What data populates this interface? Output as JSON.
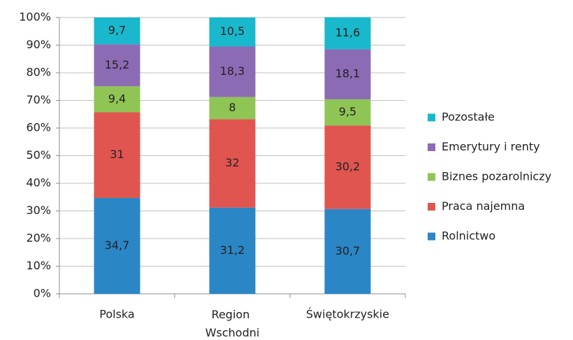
{
  "chart_data": {
    "type": "stacked_bar",
    "categories": [
      "Polska",
      "Region Wschodni",
      "Świętokrzyskie"
    ],
    "series": [
      {
        "name": "Rolnictwo",
        "color": "#2b86c6",
        "values": [
          34.7,
          31.2,
          30.7
        ],
        "value_labels": [
          "34,7",
          "31,2",
          "30,7"
        ]
      },
      {
        "name": "Praca najemna",
        "color": "#e05550",
        "values": [
          31,
          32,
          30.2
        ],
        "value_labels": [
          "31",
          "32",
          "30,2"
        ]
      },
      {
        "name": "Biznes pozarolniczy",
        "color": "#8fc555",
        "values": [
          9.4,
          8,
          9.5
        ],
        "value_labels": [
          "9,4",
          "8",
          "9,5"
        ]
      },
      {
        "name": "Emerytury i renty",
        "color": "#8c6bb5",
        "values": [
          15.2,
          18.3,
          18.1
        ],
        "value_labels": [
          "15,2",
          "18,3",
          "18,1"
        ]
      },
      {
        "name": "Pozostałe",
        "color": "#19b8cc",
        "values": [
          9.7,
          10.5,
          11.6
        ],
        "value_labels": [
          "9,7",
          "10,5",
          "11,6"
        ]
      }
    ],
    "ylim": [
      0,
      100
    ],
    "yticks": [
      {
        "value": 0,
        "label": "0%"
      },
      {
        "value": 10,
        "label": "10%"
      },
      {
        "value": 20,
        "label": "20%"
      },
      {
        "value": 30,
        "label": "30%"
      },
      {
        "value": 40,
        "label": "40%"
      },
      {
        "value": 50,
        "label": "50%"
      },
      {
        "value": 60,
        "label": "60%"
      },
      {
        "value": 70,
        "label": "70%"
      },
      {
        "value": 80,
        "label": "80%"
      },
      {
        "value": 90,
        "label": "90%"
      },
      {
        "value": 100,
        "label": "100%"
      }
    ],
    "grid": true,
    "legend": "right"
  }
}
